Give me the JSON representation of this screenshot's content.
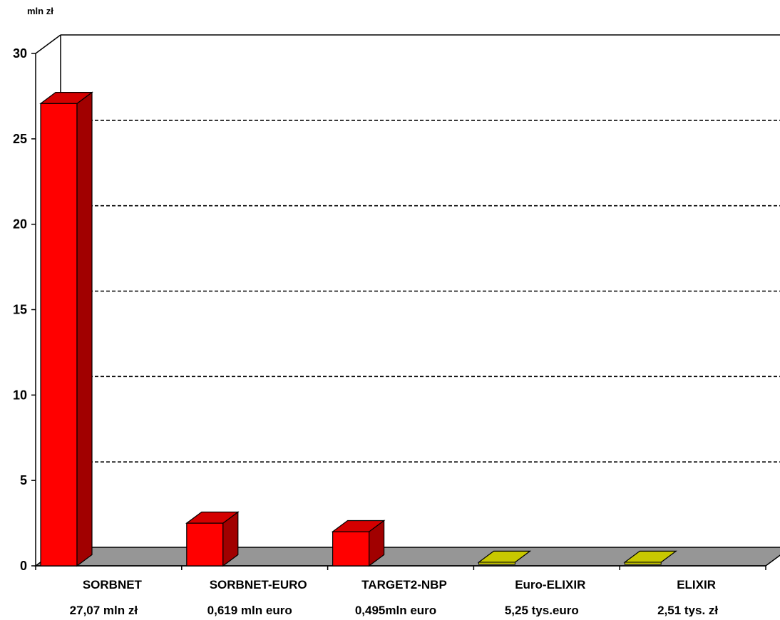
{
  "chart_data": {
    "type": "bar",
    "ylabel": "mln zł",
    "ylim": [
      0,
      30
    ],
    "yticks": [
      0,
      5,
      10,
      15,
      20,
      25,
      30
    ],
    "grid": true,
    "categories": [
      "SORBNET",
      "SORBNET-EURO",
      "TARGET2-NBP",
      "Euro-ELIXIR",
      "ELIXIR"
    ],
    "sublabels": [
      "27,07 mln zł",
      "0,619 mln euro",
      "0,495mln euro",
      "5,25 tys.euro",
      "2,51 tys. zł"
    ],
    "values": [
      27.07,
      2.5,
      2.0,
      0.1,
      0.1
    ],
    "colors": [
      "red",
      "red",
      "red",
      "yellow",
      "yellow"
    ]
  },
  "colors": {
    "red_front": "#ff0000",
    "red_side": "#a10000",
    "red_top": "#d40000",
    "yellow_front": "#cccc00",
    "yellow_top": "#c8c800",
    "floor": "#969696"
  }
}
